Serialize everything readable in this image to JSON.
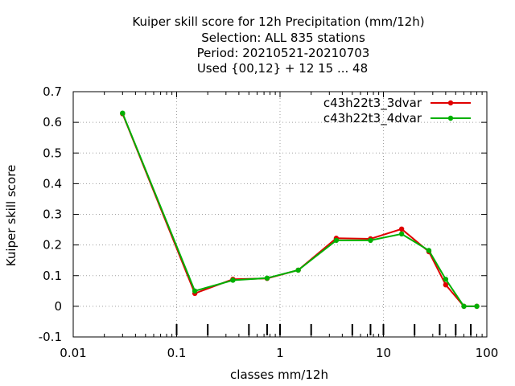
{
  "chart_data": {
    "type": "line",
    "title_lines": [
      "Kuiper skill score  for 12h Precipitation (mm/12h)",
      "Selection: ALL    835 stations",
      "Period: 20210521-20210703",
      "Used {00,12} + 12 15 ... 48"
    ],
    "xlabel": "classes mm/12h",
    "ylabel": "Kuiper skill score",
    "x_scale": "log",
    "xlim": [
      0.01,
      100
    ],
    "ylim": [
      -0.1,
      0.7
    ],
    "x_ticks": [
      0.01,
      0.1,
      1,
      10,
      100
    ],
    "x_tick_labels": [
      "0.01",
      "0.1",
      "1",
      "10",
      "100"
    ],
    "y_ticks": [
      -0.1,
      0,
      0.1,
      0.2,
      0.3,
      0.4,
      0.5,
      0.6,
      0.7
    ],
    "y_tick_labels": [
      "-0.1",
      "0",
      "0.1",
      "0.2",
      "0.3",
      "0.4",
      "0.5",
      "0.6",
      "0.7"
    ],
    "grid": true,
    "legend_position": "top-right",
    "class_markers": [
      0.1,
      0.2,
      0.5,
      0.75,
      1,
      2,
      5,
      7.5,
      10,
      20,
      35,
      50,
      70
    ],
    "series": [
      {
        "name": "c43h22t3_3dvar",
        "color": "#e00000",
        "x": [
          0.03,
          0.15,
          0.35,
          0.75,
          1.5,
          3.5,
          7.5,
          15,
          27.5,
          40,
          60,
          80
        ],
        "y": [
          0.628,
          0.042,
          0.088,
          0.091,
          0.118,
          0.222,
          0.22,
          0.252,
          0.178,
          0.07,
          0.0,
          0.0
        ]
      },
      {
        "name": "c43h22t3_4dvar",
        "color": "#00b000",
        "x": [
          0.03,
          0.15,
          0.35,
          0.75,
          1.5,
          3.5,
          7.5,
          15,
          27.5,
          40,
          60,
          80
        ],
        "y": [
          0.63,
          0.05,
          0.085,
          0.092,
          0.118,
          0.215,
          0.215,
          0.236,
          0.182,
          0.088,
          0.0,
          0.0
        ]
      }
    ]
  }
}
